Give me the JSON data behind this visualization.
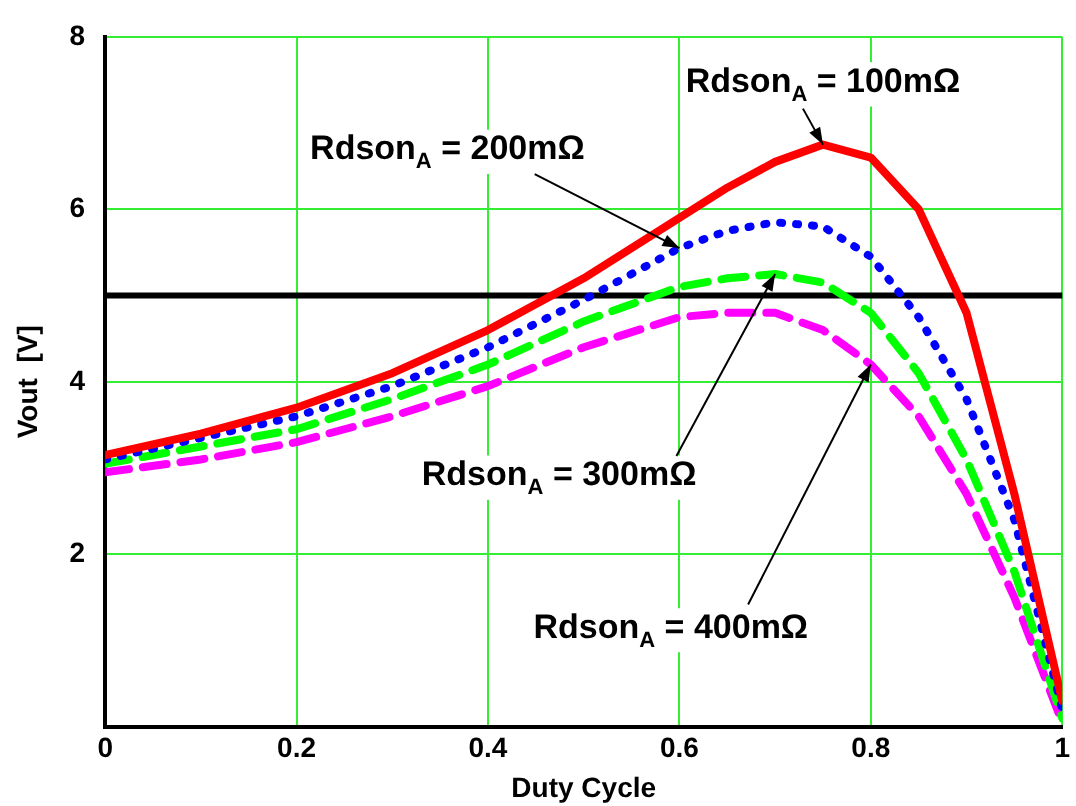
{
  "chart_data": {
    "type": "line",
    "xlabel": "Duty Cycle",
    "ylabel": "Vout  [V]",
    "x": [
      0,
      0.1,
      0.2,
      0.3,
      0.4,
      0.5,
      0.6,
      0.65,
      0.7,
      0.75,
      0.8,
      0.85,
      0.9,
      0.95,
      1
    ],
    "series": [
      {
        "color": "#ff0000",
        "line_style": "solid",
        "values": [
          3.15,
          3.4,
          3.7,
          4.1,
          4.6,
          5.2,
          5.9,
          6.25,
          6.55,
          6.75,
          6.6,
          6.0,
          4.8,
          2.7,
          0.3
        ]
      },
      {
        "color": "#0000ff",
        "line_style": "dotted",
        "values": [
          3.1,
          3.35,
          3.6,
          3.95,
          4.4,
          4.95,
          5.55,
          5.75,
          5.85,
          5.8,
          5.45,
          4.75,
          3.8,
          2.4,
          0.2
        ]
      },
      {
        "color": "#00ff00",
        "line_style": "dashed",
        "values": [
          3.05,
          3.25,
          3.45,
          3.8,
          4.2,
          4.7,
          5.1,
          5.2,
          5.25,
          5.15,
          4.8,
          4.1,
          3.1,
          1.8,
          0.1
        ]
      },
      {
        "color": "#ff00ff",
        "line_style": "dashed",
        "values": [
          2.95,
          3.1,
          3.3,
          3.6,
          3.95,
          4.4,
          4.75,
          4.8,
          4.8,
          4.6,
          4.2,
          3.6,
          2.7,
          1.5,
          0.05
        ]
      }
    ],
    "xlim": [
      0,
      1
    ],
    "xticks": [
      0,
      0.2,
      0.4,
      0.6,
      0.8,
      1
    ],
    "ylim": [
      0,
      8
    ],
    "yticks": [
      {
        "value": 0,
        "label": null
      },
      2,
      4,
      6,
      8
    ],
    "annotations": [
      {
        "text": "Rdson$_{A}$ = 100mΩ",
        "x": 0.75,
        "y": 6.75
      },
      {
        "text": "Rdson$_{A}$ = 200mΩ",
        "x": 0.6,
        "y": 5.55
      },
      {
        "text": "Rdson$_{A}$ = 300mΩ",
        "x": 0.7,
        "y": 5.25
      },
      {
        "text": "Rdson$_{A}$ = 400mΩ",
        "x": 0.8,
        "y": 4.2
      }
    ],
    "ref_lines": [
      {
        "axis": "y",
        "value": 5,
        "color": "#000000"
      }
    ],
    "grid": true,
    "legend": false,
    "marker": "none"
  }
}
